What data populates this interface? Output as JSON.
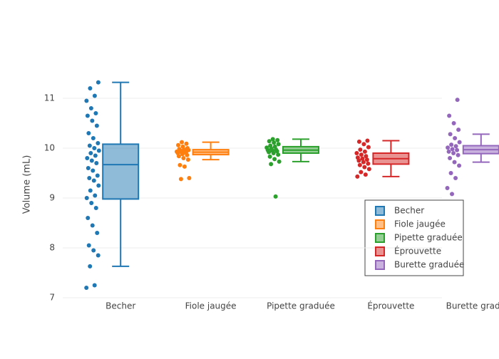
{
  "chart_data": {
    "type": "box",
    "y_label": "Volume (mL)",
    "ylim": [
      7,
      11.5
    ],
    "yticks": [
      7,
      8,
      9,
      10,
      11
    ],
    "grid": true,
    "legend": "lower right",
    "series": [
      {
        "name": "Becher",
        "color": "#1f77b4",
        "min": 7.63,
        "q1": 8.98,
        "median": 9.67,
        "q3": 10.08,
        "max": 11.32,
        "values": [
          7.2,
          7.25,
          7.63,
          7.85,
          7.95,
          8.05,
          8.3,
          8.45,
          8.6,
          8.8,
          8.9,
          9.0,
          9.05,
          9.15,
          9.25,
          9.35,
          9.4,
          9.45,
          9.55,
          9.6,
          9.7,
          9.75,
          9.8,
          9.85,
          9.9,
          9.95,
          10.0,
          10.05,
          10.1,
          10.2,
          10.3,
          10.45,
          10.55,
          10.65,
          10.7,
          10.8,
          10.95,
          11.05,
          11.2,
          11.32
        ]
      },
      {
        "name": "Fiole jaugée",
        "color": "#ff7f0e",
        "min": 9.77,
        "q1": 9.87,
        "median": 9.92,
        "q3": 9.97,
        "max": 10.12,
        "values": [
          9.38,
          9.4,
          9.63,
          9.66,
          9.77,
          9.8,
          9.84,
          9.86,
          9.88,
          9.9,
          9.91,
          9.92,
          9.93,
          9.94,
          9.95,
          9.96,
          9.97,
          9.98,
          10.0,
          10.03,
          10.06,
          10.09,
          10.12
        ]
      },
      {
        "name": "Pipette graduée",
        "color": "#2ca02c",
        "min": 9.73,
        "q1": 9.9,
        "median": 9.96,
        "q3": 10.03,
        "max": 10.18,
        "values": [
          9.03,
          9.68,
          9.73,
          9.78,
          9.83,
          9.87,
          9.9,
          9.92,
          9.94,
          9.95,
          9.96,
          9.97,
          9.99,
          10.01,
          10.03,
          10.05,
          10.08,
          10.11,
          10.14,
          10.16,
          10.18
        ]
      },
      {
        "name": "Éprouvette",
        "color": "#d62728",
        "min": 9.43,
        "q1": 9.68,
        "median": 9.79,
        "q3": 9.9,
        "max": 10.15,
        "values": [
          9.43,
          9.47,
          9.52,
          9.58,
          9.62,
          9.66,
          9.69,
          9.72,
          9.75,
          9.77,
          9.79,
          9.81,
          9.84,
          9.87,
          9.9,
          9.93,
          9.97,
          10.02,
          10.08,
          10.13,
          10.15
        ]
      },
      {
        "name": "Burette graduée",
        "color": "#9467bd",
        "min": 9.72,
        "q1": 9.89,
        "median": 9.97,
        "q3": 10.05,
        "max": 10.28,
        "values": [
          9.08,
          9.2,
          9.4,
          9.5,
          9.65,
          9.72,
          9.8,
          9.86,
          9.9,
          9.93,
          9.96,
          9.98,
          10.01,
          10.04,
          10.07,
          10.12,
          10.2,
          10.28,
          10.37,
          10.5,
          10.65,
          10.97
        ]
      }
    ]
  }
}
